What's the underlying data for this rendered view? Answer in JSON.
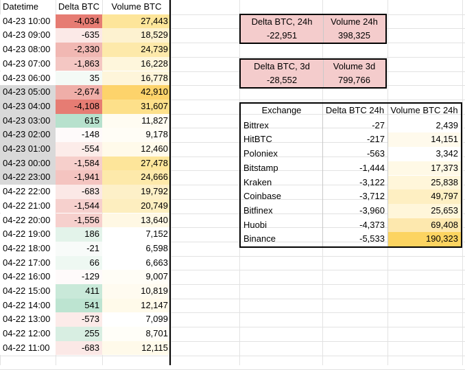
{
  "main_table": {
    "headers": [
      "Datetime",
      "Delta BTC",
      "Volume BTC"
    ],
    "rows": [
      {
        "datetime": "04-23 10:00",
        "delta": "-4,034",
        "volume": "27,443",
        "dt_bg": "#ffffff",
        "delta_bg": "#e67c73",
        "vol_bg": "#fde59a"
      },
      {
        "datetime": "04-23 09:00",
        "delta": "-635",
        "volume": "18,529",
        "dt_bg": "#ffffff",
        "delta_bg": "#fbe9e7",
        "vol_bg": "#fdf2d0"
      },
      {
        "datetime": "04-23 08:00",
        "delta": "-2,330",
        "volume": "24,739",
        "dt_bg": "#ffffff",
        "delta_bg": "#f1b8b3",
        "vol_bg": "#fde9aa"
      },
      {
        "datetime": "04-23 07:00",
        "delta": "-1,863",
        "volume": "16,228",
        "dt_bg": "#ffffff",
        "delta_bg": "#f4c7c3",
        "vol_bg": "#fef6dc"
      },
      {
        "datetime": "04-23 06:00",
        "delta": "35",
        "volume": "16,778",
        "dt_bg": "#ffffff",
        "delta_bg": "#f4faf6",
        "vol_bg": "#fef5da"
      },
      {
        "datetime": "04-23 05:00",
        "delta": "-2,674",
        "volume": "42,910",
        "dt_bg": "#d9d9d9",
        "delta_bg": "#efaea8",
        "vol_bg": "#fdd36b"
      },
      {
        "datetime": "04-23 04:00",
        "delta": "-4,108",
        "volume": "31,607",
        "dt_bg": "#d9d9d9",
        "delta_bg": "#e67c73",
        "vol_bg": "#fde08a"
      },
      {
        "datetime": "04-23 03:00",
        "delta": "615",
        "volume": "11,827",
        "dt_bg": "#d9d9d9",
        "delta_bg": "#b7e1cd",
        "vol_bg": "#fffcf2"
      },
      {
        "datetime": "04-23 02:00",
        "delta": "-148",
        "volume": "9,178",
        "dt_bg": "#d9d9d9",
        "delta_bg": "#fefafa",
        "vol_bg": "#fffdf6"
      },
      {
        "datetime": "04-23 01:00",
        "delta": "-554",
        "volume": "12,460",
        "dt_bg": "#d9d9d9",
        "delta_bg": "#fcece9",
        "vol_bg": "#fffaea"
      },
      {
        "datetime": "04-23 00:00",
        "delta": "-1,584",
        "volume": "27,478",
        "dt_bg": "#d9d9d9",
        "delta_bg": "#f6cfcb",
        "vol_bg": "#fde59a"
      },
      {
        "datetime": "04-22 23:00",
        "delta": "-1,941",
        "volume": "24,666",
        "dt_bg": "#d9d9d9",
        "delta_bg": "#f4c4c0",
        "vol_bg": "#fde9aa"
      },
      {
        "datetime": "04-22 22:00",
        "delta": "-683",
        "volume": "19,792",
        "dt_bg": "#ffffff",
        "delta_bg": "#fbe8e6",
        "vol_bg": "#fdf0c8"
      },
      {
        "datetime": "04-22 21:00",
        "delta": "-1,544",
        "volume": "20,749",
        "dt_bg": "#ffffff",
        "delta_bg": "#f6d0cd",
        "vol_bg": "#fdeebf"
      },
      {
        "datetime": "04-22 20:00",
        "delta": "-1,556",
        "volume": "13,640",
        "dt_bg": "#ffffff",
        "delta_bg": "#f6d0cd",
        "vol_bg": "#fff8e4"
      },
      {
        "datetime": "04-22 19:00",
        "delta": "186",
        "volume": "7,152",
        "dt_bg": "#ffffff",
        "delta_bg": "#e3f3ea",
        "vol_bg": "#ffffff"
      },
      {
        "datetime": "04-22 18:00",
        "delta": "-21",
        "volume": "6,598",
        "dt_bg": "#ffffff",
        "delta_bg": "#f8fbf9",
        "vol_bg": "#ffffff"
      },
      {
        "datetime": "04-22 17:00",
        "delta": "66",
        "volume": "6,663",
        "dt_bg": "#ffffff",
        "delta_bg": "#eef8f2",
        "vol_bg": "#ffffff"
      },
      {
        "datetime": "04-22 16:00",
        "delta": "-129",
        "volume": "9,007",
        "dt_bg": "#ffffff",
        "delta_bg": "#fefafa",
        "vol_bg": "#fffdf6"
      },
      {
        "datetime": "04-22 15:00",
        "delta": "411",
        "volume": "10,819",
        "dt_bg": "#ffffff",
        "delta_bg": "#c9e9d9",
        "vol_bg": "#fffbf0"
      },
      {
        "datetime": "04-22 14:00",
        "delta": "541",
        "volume": "12,147",
        "dt_bg": "#ffffff",
        "delta_bg": "#bde4d1",
        "vol_bg": "#fffaea"
      },
      {
        "datetime": "04-22 13:00",
        "delta": "-573",
        "volume": "7,099",
        "dt_bg": "#ffffff",
        "delta_bg": "#fcebe9",
        "vol_bg": "#ffffff"
      },
      {
        "datetime": "04-22 12:00",
        "delta": "255",
        "volume": "8,701",
        "dt_bg": "#ffffff",
        "delta_bg": "#d8eee2",
        "vol_bg": "#fffef8"
      },
      {
        "datetime": "04-22 11:00",
        "delta": "-683",
        "volume": "12,115",
        "dt_bg": "#ffffff",
        "delta_bg": "#fbe8e6",
        "vol_bg": "#fffaea"
      }
    ]
  },
  "summary_24h": {
    "headers": [
      "Delta BTC, 24h",
      "Volume 24h"
    ],
    "values": [
      "-22,951",
      "398,325"
    ],
    "bg": "#f4cccc"
  },
  "summary_3d": {
    "headers": [
      "Delta BTC, 3d",
      "Volume 3d"
    ],
    "values": [
      "-28,552",
      "799,766"
    ],
    "bg": "#f4cccc"
  },
  "exchange_table": {
    "headers": [
      "Exchange",
      "Delta BTC 24h",
      "Volume BTC 24h"
    ],
    "rows": [
      {
        "name": "Bittrex",
        "delta": "-27",
        "volume": "2,439",
        "vol_bg": "#ffffff"
      },
      {
        "name": "HitBTC",
        "delta": "-217",
        "volume": "14,151",
        "vol_bg": "#fffaec"
      },
      {
        "name": "Poloniex",
        "delta": "-563",
        "volume": "3,342",
        "vol_bg": "#ffffff"
      },
      {
        "name": "Bitstamp",
        "delta": "-1,444",
        "volume": "17,373",
        "vol_bg": "#fff9e6"
      },
      {
        "name": "Kraken",
        "delta": "-3,122",
        "volume": "25,838",
        "vol_bg": "#fff6da"
      },
      {
        "name": "Coinbase",
        "delta": "-3,712",
        "volume": "49,797",
        "vol_bg": "#feefc2"
      },
      {
        "name": "Bitfinex",
        "delta": "-3,960",
        "volume": "25,653",
        "vol_bg": "#fff6da"
      },
      {
        "name": "Huobi",
        "delta": "-4,373",
        "volume": "69,408",
        "vol_bg": "#fde8ae"
      },
      {
        "name": "Binance",
        "delta": "-5,533",
        "volume": "190,323",
        "vol_bg": "#fcd461"
      }
    ]
  }
}
